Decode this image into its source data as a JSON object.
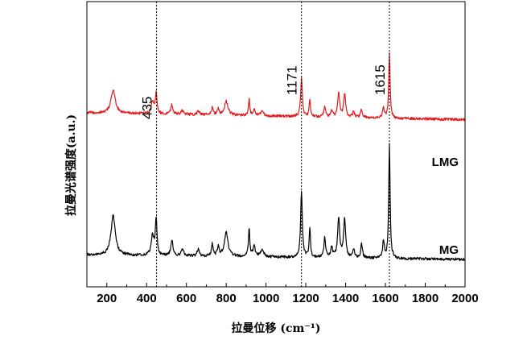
{
  "chart_data": {
    "type": "line",
    "title": "",
    "xlabel": "拉曼位移 (cm⁻¹)",
    "ylabel": "拉曼光谱强度(a.u.)",
    "xlim": [
      100,
      2000
    ],
    "ylim": [
      0,
      1
    ],
    "xticks": [
      200,
      400,
      600,
      800,
      1000,
      1200,
      1400,
      1600,
      1800,
      2000
    ],
    "grid": false,
    "legend": "none",
    "annotations": [
      {
        "label": "435",
        "x": 450
      },
      {
        "label": "1171",
        "x": 1178
      },
      {
        "label": "1615",
        "x": 1620
      }
    ],
    "peaks": [
      {
        "x": 232,
        "h": 0.8,
        "w": 13
      },
      {
        "x": 430,
        "h": 0.4,
        "w": 8
      },
      {
        "x": 448,
        "h": 0.7,
        "w": 5
      },
      {
        "x": 527,
        "h": 0.33,
        "w": 6
      },
      {
        "x": 580,
        "h": 0.14,
        "w": 7
      },
      {
        "x": 660,
        "h": 0.13,
        "w": 7
      },
      {
        "x": 730,
        "h": 0.25,
        "w": 5
      },
      {
        "x": 760,
        "h": 0.2,
        "w": 5
      },
      {
        "x": 800,
        "h": 0.48,
        "w": 11
      },
      {
        "x": 915,
        "h": 0.58,
        "w": 4
      },
      {
        "x": 940,
        "h": 0.22,
        "w": 6
      },
      {
        "x": 980,
        "h": 0.14,
        "w": 10
      },
      {
        "x": 1178,
        "h": 1.35,
        "w": 5
      },
      {
        "x": 1220,
        "h": 0.6,
        "w": 4
      },
      {
        "x": 1295,
        "h": 0.4,
        "w": 5
      },
      {
        "x": 1330,
        "h": 0.2,
        "w": 6
      },
      {
        "x": 1365,
        "h": 0.82,
        "w": 6
      },
      {
        "x": 1395,
        "h": 0.78,
        "w": 6
      },
      {
        "x": 1440,
        "h": 0.18,
        "w": 6
      },
      {
        "x": 1480,
        "h": 0.28,
        "w": 5
      },
      {
        "x": 1590,
        "h": 0.35,
        "w": 5
      },
      {
        "x": 1620,
        "h": 2.3,
        "w": 4
      }
    ],
    "series": [
      {
        "name": "LMG",
        "color": "#e41a1c",
        "offset": 0.72,
        "scale": 0.58,
        "baseline_slope": 0.03
      },
      {
        "name": "MG",
        "color": "#000000",
        "offset": 0.1,
        "scale": 1.0,
        "baseline_slope": 0.02
      }
    ]
  }
}
